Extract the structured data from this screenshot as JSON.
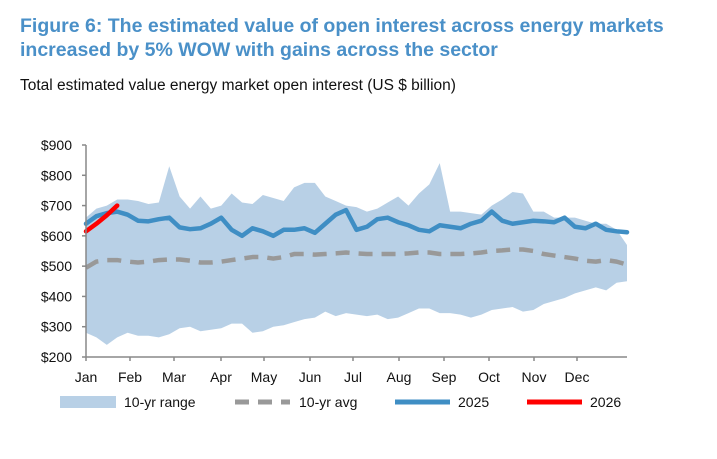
{
  "chart_data": {
    "type": "line",
    "title": "Figure 6: The estimated value of open interest across energy markets increased by 5% WOW with gains across the sector",
    "subtitle": "Total estimated value energy market open interest (US $ billion)",
    "xlabel": "",
    "ylabel": "",
    "x_ticks": [
      "Jan",
      "Feb",
      "Mar",
      "Apr",
      "May",
      "Jun",
      "Jul",
      "Aug",
      "Sep",
      "Oct",
      "Nov",
      "Dec"
    ],
    "y_ticks": [
      "$200",
      "$300",
      "$400",
      "$500",
      "$600",
      "$700",
      "$800",
      "$900"
    ],
    "ylim": [
      200,
      900
    ],
    "x_unit": "week of year",
    "grid": false,
    "legend_position": "bottom",
    "colors": {
      "range": "#b8d0e6",
      "avg": "#999999",
      "y2025": "#3f8ec4",
      "y2026": "#ff0000"
    },
    "range_upper": [
      660,
      690,
      700,
      720,
      720,
      715,
      705,
      710,
      830,
      730,
      690,
      730,
      690,
      700,
      740,
      710,
      705,
      735,
      725,
      715,
      760,
      775,
      775,
      730,
      715,
      700,
      695,
      680,
      690,
      710,
      730,
      700,
      740,
      770,
      840,
      680,
      680,
      675,
      670,
      700,
      720,
      745,
      740,
      680,
      680,
      660,
      660,
      660,
      650,
      640,
      640,
      620,
      570
    ],
    "range_lower": [
      280,
      265,
      240,
      265,
      280,
      270,
      270,
      265,
      275,
      295,
      300,
      285,
      290,
      295,
      310,
      310,
      280,
      285,
      300,
      305,
      315,
      325,
      330,
      350,
      335,
      345,
      340,
      335,
      340,
      325,
      330,
      345,
      360,
      360,
      345,
      345,
      340,
      330,
      340,
      355,
      360,
      365,
      350,
      355,
      375,
      385,
      395,
      410,
      420,
      430,
      420,
      445,
      450
    ],
    "series": [
      {
        "name": "10-yr avg",
        "values": [
          495,
          515,
          520,
          520,
          515,
          512,
          515,
          520,
          522,
          522,
          518,
          512,
          512,
          515,
          520,
          525,
          530,
          530,
          525,
          530,
          540,
          540,
          538,
          540,
          542,
          545,
          542,
          540,
          540,
          540,
          540,
          542,
          545,
          545,
          540,
          540,
          540,
          542,
          545,
          550,
          552,
          555,
          555,
          550,
          540,
          535,
          530,
          525,
          518,
          515,
          520,
          515,
          505
        ]
      },
      {
        "name": "2025",
        "values": [
          640,
          665,
          675,
          680,
          670,
          650,
          648,
          655,
          660,
          628,
          622,
          625,
          640,
          660,
          620,
          600,
          625,
          615,
          600,
          620,
          620,
          625,
          610,
          640,
          670,
          685,
          620,
          630,
          655,
          660,
          645,
          635,
          620,
          615,
          635,
          630,
          625,
          640,
          650,
          680,
          650,
          640,
          645,
          650,
          648,
          645,
          660,
          630,
          625,
          640,
          620,
          615,
          612
        ]
      },
      {
        "name": "2026",
        "values": [
          615,
          640,
          668,
          700
        ]
      }
    ],
    "legend": [
      "10-yr range",
      "10-yr avg",
      "2025",
      "2026"
    ]
  }
}
